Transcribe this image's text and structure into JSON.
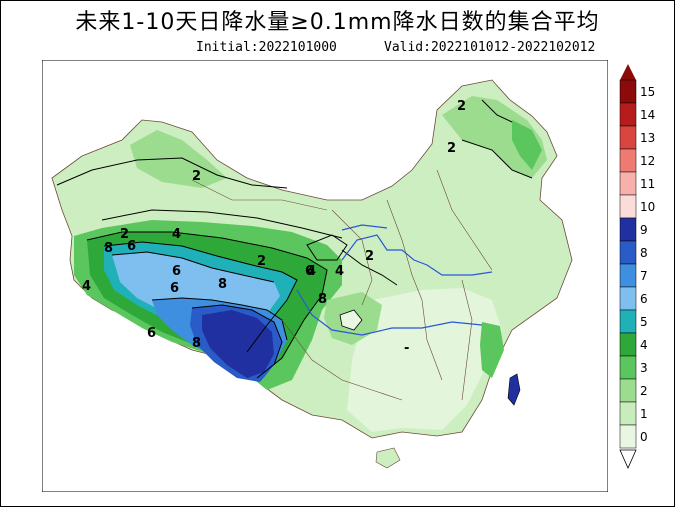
{
  "title": "未来1-10天日降水量≥0.1mm降水日数的集合平均",
  "initial": "Initial:2022101000",
  "valid": "Valid:2022101012-2022102012",
  "legend": {
    "levels": [
      "15",
      "14",
      "13",
      "12",
      "11",
      "10",
      "9",
      "8",
      "7",
      "6",
      "5",
      "4",
      "3",
      "2",
      "1",
      "0"
    ],
    "colors": [
      "#8b0a0a",
      "#b71c1c",
      "#d9463f",
      "#ee7a72",
      "#f7b1aa",
      "#fbdcd8",
      "#2030a0",
      "#2a5cc8",
      "#3f8fe0",
      "#7fbff0",
      "#20b0b8",
      "#2fa83a",
      "#5cc65e",
      "#9bdc8e",
      "#c8ecbc",
      "#e9f7e2"
    ]
  },
  "contour_labels": [
    "2",
    "2",
    "2",
    "2",
    "4",
    "4",
    "4",
    "4",
    "2",
    "2",
    "6",
    "6",
    "6",
    "6",
    "8",
    "8",
    "8",
    "8",
    "6",
    "-"
  ]
}
